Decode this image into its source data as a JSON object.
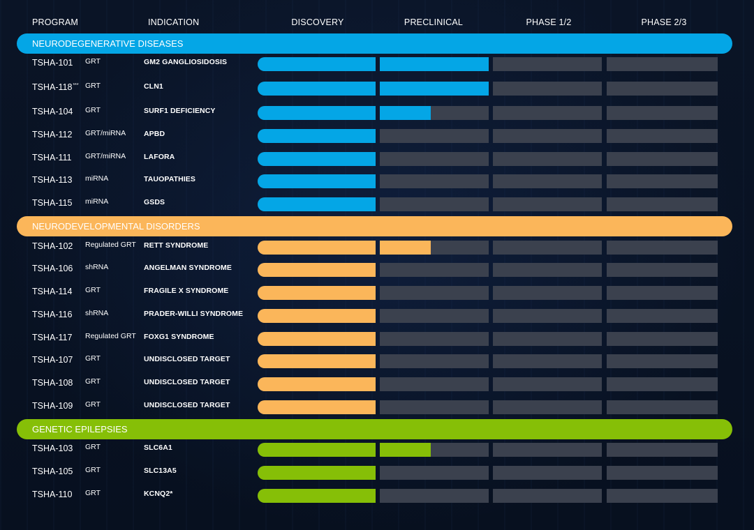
{
  "headers": {
    "program": "PROGRAM",
    "indication": "INDICATION",
    "stages": [
      "DISCOVERY",
      "PRECLINICAL",
      "PHASE 1/2",
      "PHASE 2/3"
    ]
  },
  "colors": {
    "neurodegenerative": "#04a6e6",
    "neurodevelopmental": "#fbb65a",
    "epilepsy": "#86bf07",
    "track": "#3b414e"
  },
  "chart_data": {
    "type": "bar",
    "orientation": "horizontal",
    "stage_axis": [
      "DISCOVERY",
      "PRECLINICAL",
      "PHASE 1/2",
      "PHASE 2/3"
    ],
    "categories": [
      {
        "name": "NEURODEGENERATIVE DISEASES",
        "color_key": "neurodegenerative",
        "programs": [
          {
            "code": "TSHA-101",
            "sup": "",
            "modality": "GRT",
            "indication": "GM2 GANGLIOSIDOSIS",
            "progress": 2.0
          },
          {
            "code": "TSHA-118",
            "sup": "***",
            "modality": "GRT",
            "indication": "CLN1",
            "progress": 2.0
          },
          {
            "code": "TSHA-104",
            "sup": "",
            "modality": "GRT",
            "indication": "SURF1 DEFICIENCY",
            "progress": 1.47
          },
          {
            "code": "TSHA-112",
            "sup": "",
            "modality": "GRT/miRNA",
            "indication": "APBD",
            "progress": 1.0
          },
          {
            "code": "TSHA-111",
            "sup": "",
            "modality": "GRT/miRNA",
            "indication": "LAFORA",
            "progress": 1.0
          },
          {
            "code": "TSHA-113",
            "sup": "",
            "modality": "miRNA",
            "indication": "TAUOPATHIES",
            "progress": 1.0
          },
          {
            "code": "TSHA-115",
            "sup": "",
            "modality": "miRNA",
            "indication": "GSDS",
            "progress": 1.0
          }
        ]
      },
      {
        "name": "NEURODEVELOPMENTAL DISORDERS",
        "color_key": "neurodevelopmental",
        "programs": [
          {
            "code": "TSHA-102",
            "sup": "",
            "modality": "Regulated GRT",
            "indication": "RETT SYNDROME",
            "progress": 1.47
          },
          {
            "code": "TSHA-106",
            "sup": "",
            "modality": "shRNA",
            "indication": "ANGELMAN SYNDROME",
            "progress": 1.0
          },
          {
            "code": "TSHA-114",
            "sup": "",
            "modality": "GRT",
            "indication": "FRAGILE X SYNDROME",
            "progress": 1.0
          },
          {
            "code": "TSHA-116",
            "sup": "",
            "modality": "shRNA",
            "indication": "PRADER-WILLI SYNDROME",
            "progress": 1.0
          },
          {
            "code": "TSHA-117",
            "sup": "",
            "modality": "Regulated GRT",
            "indication": "FOXG1 SYNDROME",
            "progress": 1.0
          },
          {
            "code": "TSHA-107",
            "sup": "",
            "modality": "GRT",
            "indication": "UNDISCLOSED TARGET",
            "progress": 1.0
          },
          {
            "code": "TSHA-108",
            "sup": "",
            "modality": "GRT",
            "indication": "UNDISCLOSED TARGET",
            "progress": 1.0
          },
          {
            "code": "TSHA-109",
            "sup": "",
            "modality": "GRT",
            "indication": "UNDISCLOSED TARGET",
            "progress": 1.0
          }
        ]
      },
      {
        "name": "GENETIC EPILEPSIES",
        "color_key": "epilepsy",
        "programs": [
          {
            "code": "TSHA-103",
            "sup": "",
            "modality": "GRT",
            "indication": "SLC6A1",
            "progress": 1.47
          },
          {
            "code": "TSHA-105",
            "sup": "",
            "modality": "GRT",
            "indication": "SLC13A5",
            "progress": 1.0
          },
          {
            "code": "TSHA-110",
            "sup": "",
            "modality": "GRT",
            "indication": "KCNQ2*",
            "progress": 1.0
          }
        ]
      }
    ]
  }
}
